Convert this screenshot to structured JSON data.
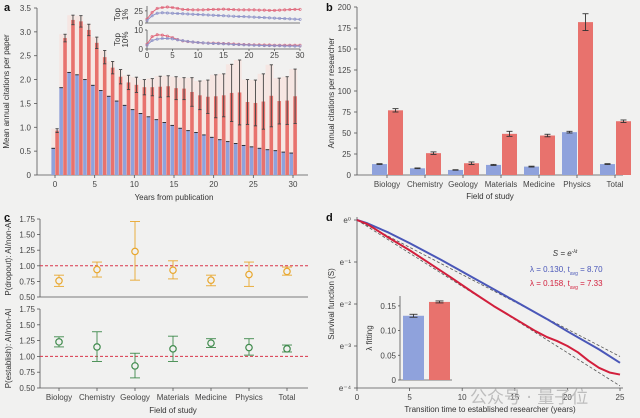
{
  "colors": {
    "blue": "#8fa2dc",
    "red": "#e8726d",
    "redLight": "#f6c9c3",
    "orange": "#e8a72e",
    "green": "#3f8a4c",
    "dash": "#d9364a",
    "blueLine": "#4a57b8",
    "redLine": "#d21f3c"
  },
  "watermark": "公众号 · 量子位",
  "chart_data": [
    {
      "panel": "a",
      "type": "bar",
      "xlabel": "Years from publication",
      "ylabel": "Mean annual citations per paper",
      "ylim": [
        0,
        3.5
      ],
      "yticks": [
        "0",
        "0.5",
        "1.0",
        "1.5",
        "2.0",
        "2.5",
        "3.0",
        "3.5"
      ],
      "xticks": [
        "0",
        "5",
        "10",
        "15",
        "20",
        "25",
        "30"
      ],
      "x": [
        0,
        1,
        2,
        3,
        4,
        5,
        6,
        7,
        8,
        9,
        10,
        11,
        12,
        13,
        14,
        15,
        16,
        17,
        18,
        19,
        20,
        21,
        22,
        23,
        24,
        25,
        26,
        27,
        28,
        29,
        30
      ],
      "series": [
        {
          "name": "non-AI",
          "color": "blue",
          "values": [
            0.56,
            1.83,
            2.15,
            2.1,
            2.0,
            1.88,
            1.77,
            1.65,
            1.55,
            1.46,
            1.37,
            1.29,
            1.22,
            1.16,
            1.1,
            1.04,
            0.98,
            0.93,
            0.89,
            0.84,
            0.79,
            0.74,
            0.7,
            0.66,
            0.62,
            0.59,
            0.56,
            0.53,
            0.51,
            0.48,
            0.46
          ]
        },
        {
          "name": "AI",
          "color": "red",
          "values": [
            0.93,
            2.87,
            3.25,
            3.22,
            3.04,
            2.77,
            2.47,
            2.25,
            2.06,
            1.94,
            1.89,
            1.84,
            1.84,
            1.85,
            1.86,
            1.82,
            1.81,
            1.74,
            1.67,
            1.64,
            1.65,
            1.67,
            1.72,
            1.73,
            1.53,
            1.51,
            1.54,
            1.66,
            1.55,
            1.56,
            1.65
          ],
          "err": [
            0.04,
            0.08,
            0.1,
            0.12,
            0.12,
            0.12,
            0.14,
            0.13,
            0.15,
            0.15,
            0.16,
            0.16,
            0.18,
            0.22,
            0.22,
            0.24,
            0.23,
            0.3,
            0.3,
            0.35,
            0.45,
            0.45,
            0.6,
            0.68,
            0.47,
            0.48,
            0.58,
            0.65,
            0.48,
            0.5,
            0.57
          ]
        }
      ],
      "insets": [
        {
          "label": [
            "Top",
            "1%"
          ],
          "ylim": [
            0,
            35
          ],
          "yticks": [
            "0",
            "25"
          ],
          "red": [
            8,
            22,
            30,
            32,
            33,
            32,
            30,
            28,
            27.5,
            27,
            27,
            27,
            27.5,
            28,
            28,
            28.5,
            28,
            27.5,
            27,
            27,
            27,
            27,
            26.5,
            26.5,
            26,
            26,
            26.5,
            27,
            27.5,
            28,
            28
          ],
          "blue": [
            5,
            15,
            20,
            21,
            20.5,
            20,
            19.5,
            19,
            18.5,
            18,
            17.5,
            17,
            16.5,
            16,
            15.5,
            15,
            14.5,
            14,
            13.5,
            13,
            12.5,
            12,
            11.5,
            11,
            10.5,
            10,
            9.5,
            9,
            8.5,
            8,
            7.5
          ]
        },
        {
          "label": [
            "Top",
            "10%"
          ],
          "ylim": [
            0,
            10
          ],
          "yticks": [
            "0",
            "10"
          ],
          "xticks": [
            "0",
            "5",
            "10",
            "15",
            "20",
            "25",
            "30"
          ],
          "red": [
            2.5,
            6.5,
            7.5,
            7.3,
            6.8,
            6.0,
            5.0,
            4.3,
            3.9,
            3.6,
            3.4,
            3.2,
            3.1,
            3.1,
            3.0,
            2.9,
            2.8,
            2.6,
            2.5,
            2.4,
            2.3,
            2.2,
            2.2,
            2.1,
            2.1,
            2.0,
            2.0,
            2.0,
            2.0,
            2.0,
            2.0
          ],
          "blue": [
            2,
            4.5,
            5.2,
            5.5,
            5.5,
            5.3,
            4.8,
            4.4,
            4.0,
            3.7,
            3.4,
            3.2,
            3.0,
            2.9,
            2.8,
            2.7,
            2.6,
            2.4,
            2.3,
            2.2,
            2.1,
            2.0,
            1.9,
            1.8,
            1.8,
            1.7,
            1.7,
            1.6,
            1.6,
            1.5,
            1.5
          ]
        }
      ]
    },
    {
      "panel": "b",
      "type": "bar",
      "xlabel": "Field of study",
      "ylabel": "Annual citations per researcher",
      "ylim": [
        0,
        200
      ],
      "yticks": [
        "0",
        "25",
        "50",
        "75",
        "100",
        "125",
        "150",
        "175",
        "200"
      ],
      "categories": [
        "Biology",
        "Chemistry",
        "Geology",
        "Materials",
        "Medicine",
        "Physics",
        "Total"
      ],
      "series": [
        {
          "name": "non-AI",
          "color": "blue",
          "values": [
            13,
            8,
            6,
            12,
            10,
            51,
            13
          ],
          "err": [
            0.5,
            0.4,
            0.3,
            0.6,
            0.5,
            1,
            0.5
          ]
        },
        {
          "name": "AI",
          "color": "red",
          "values": [
            77,
            26,
            14,
            49,
            47,
            182,
            64
          ],
          "err": [
            2,
            1.5,
            1.5,
            3,
            1.5,
            10,
            1.5
          ]
        }
      ]
    },
    {
      "panel": "c",
      "type": "scatter",
      "xlabel": "Field of study",
      "categories": [
        "Biology",
        "Chemistry",
        "Geology",
        "Materials",
        "Medicine",
        "Physics",
        "Total"
      ],
      "subplots": [
        {
          "ylabel": "P(dropout): AI/non-AI",
          "color": "orange",
          "ylim": [
            0.5,
            1.75
          ],
          "yticks": [
            "0.50",
            "0.75",
            "1.00",
            "1.25",
            "1.50",
            "1.75"
          ],
          "reference": 1.0,
          "values": [
            0.76,
            0.94,
            1.23,
            0.93,
            0.77,
            0.86,
            0.91
          ],
          "lower": [
            0.67,
            0.82,
            0.77,
            0.79,
            0.68,
            0.67,
            0.85
          ],
          "upper": [
            0.85,
            1.06,
            1.71,
            1.08,
            0.85,
            1.06,
            0.98
          ]
        },
        {
          "ylabel": "P(establish): AI/non-AI",
          "color": "green",
          "ylim": [
            0.5,
            1.75
          ],
          "yticks": [
            "0.50",
            "0.75",
            "1.00",
            "1.25",
            "1.50",
            "1.75"
          ],
          "reference": 1.0,
          "values": [
            1.23,
            1.15,
            0.85,
            1.12,
            1.21,
            1.14,
            1.12
          ],
          "lower": [
            1.15,
            0.92,
            0.66,
            0.92,
            1.14,
            1.02,
            1.07
          ],
          "upper": [
            1.31,
            1.39,
            1.05,
            1.32,
            1.28,
            1.28,
            1.18
          ]
        }
      ]
    },
    {
      "panel": "d",
      "type": "line",
      "xlabel": "Transition time to established researcher (years)",
      "ylabel": "Survival function (S)",
      "xlim": [
        0,
        25
      ],
      "xticks": [
        "0",
        "5",
        "10",
        "15",
        "20",
        "25"
      ],
      "ylim_log": [
        -4,
        0
      ],
      "yticks": [
        "e⁰",
        "e⁻¹",
        "e⁻²",
        "e⁻³",
        "e⁻⁴"
      ],
      "formula": "S = e^{-λt}",
      "legend": [
        {
          "text": "λ = 0.130, t",
          "sub": "avg",
          "tail": " = 8.70",
          "color": "blueLine"
        },
        {
          "text": "λ = 0.158, t",
          "sub": "avg",
          "tail": " = 7.33",
          "color": "redLine"
        }
      ],
      "series": [
        {
          "name": "non-AI",
          "color": "blueLine",
          "t": [
            1,
            3,
            5,
            8,
            10,
            13,
            15,
            18,
            20,
            23,
            25
          ],
          "logS": [
            -0.08,
            -0.3,
            -0.55,
            -0.95,
            -1.23,
            -1.65,
            -1.93,
            -2.35,
            -2.65,
            -3.08,
            -3.4
          ],
          "fit_lambda": 0.13
        },
        {
          "name": "AI",
          "color": "redLine",
          "t": [
            1,
            3,
            5,
            7,
            9,
            11,
            13,
            15,
            17,
            18,
            19,
            20,
            21,
            22,
            23,
            24,
            25
          ],
          "logS": [
            -0.1,
            -0.42,
            -0.72,
            -1.05,
            -1.38,
            -1.72,
            -2.05,
            -2.35,
            -2.65,
            -2.78,
            -2.88,
            -3.0,
            -3.15,
            -3.35,
            -3.52,
            -3.63,
            -3.68
          ],
          "fit_lambda": 0.158
        }
      ],
      "inset": {
        "ylabel": "λ fitting",
        "ylim": [
          0,
          0.17
        ],
        "yticks": [
          "0",
          "0.05",
          "0.10",
          "0.15"
        ],
        "values": [
          0.13,
          0.158
        ],
        "err": [
          0.003,
          0.002
        ],
        "colors": [
          "blue",
          "red"
        ]
      }
    }
  ],
  "labels": {
    "a": "a",
    "b": "b",
    "c": "c",
    "d": "d"
  }
}
